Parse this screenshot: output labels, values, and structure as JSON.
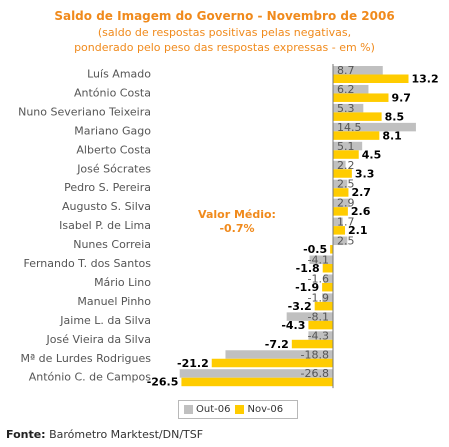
{
  "chart_data": {
    "type": "bar",
    "orientation": "horizontal",
    "title": "Saldo de Imagem do Governo - Novembro de 2006",
    "subtitle_lines": [
      "(saldo de respostas positivas pelas negativas,",
      "ponderado pelo peso das respostas expressas - em %)"
    ],
    "categories": [
      "Luís Amado",
      "António Costa",
      "Nuno Severiano Teixeira",
      "Mariano Gago",
      "Alberto Costa",
      "José Sócrates",
      "Pedro S. Pereira",
      "Augusto S. Silva",
      "Isabel P. de Lima",
      "Nunes Correia",
      "Fernando T. dos Santos",
      "Mário Lino",
      "Manuel Pinho",
      "Jaime L. da Silva",
      "José Vieira da Silva",
      "Mª de Lurdes Rodrigues",
      "António C. de Campos"
    ],
    "series": [
      {
        "name": "Out-06",
        "color": "#c0c0c0",
        "values": [
          8.7,
          6.2,
          5.3,
          14.5,
          5.1,
          2.2,
          2.5,
          2.9,
          1.7,
          2.5,
          -4.1,
          -1.6,
          -1.9,
          -8.1,
          -4.3,
          -18.8,
          -26.8
        ],
        "labels": [
          "8.7",
          "6.2",
          "5.3",
          "14.5",
          "5.1",
          "2.2",
          "2.5",
          "2.9",
          "1.7",
          "2.5",
          "-4.1",
          "-1.6",
          "-1.9",
          "-8.1",
          "-4.3",
          "-18.8",
          "-26.8"
        ]
      },
      {
        "name": "Nov-06",
        "color": "#ffcc00",
        "values": [
          13.2,
          9.7,
          8.5,
          8.1,
          4.5,
          3.3,
          2.7,
          2.6,
          2.1,
          -0.5,
          -1.8,
          -1.9,
          -3.2,
          -4.3,
          -7.2,
          -21.2,
          -26.5
        ],
        "labels": [
          "13.2",
          "9.7",
          "8.5",
          "8.1",
          "4.5",
          "3.3",
          "2.7",
          "2.6",
          "2.1",
          "-0.5",
          "-1.8",
          "-1.9",
          "-3.2",
          "-4.3",
          "-7.2",
          "-21.2",
          "-26.5"
        ]
      }
    ],
    "annotation": {
      "title": "Valor Médio:",
      "value": "-0.7%"
    },
    "legend_position": "bottom-center",
    "grid": false
  },
  "source": {
    "label": "Fonte:",
    "text": "Barómetro Marktest/DN/TSF"
  }
}
